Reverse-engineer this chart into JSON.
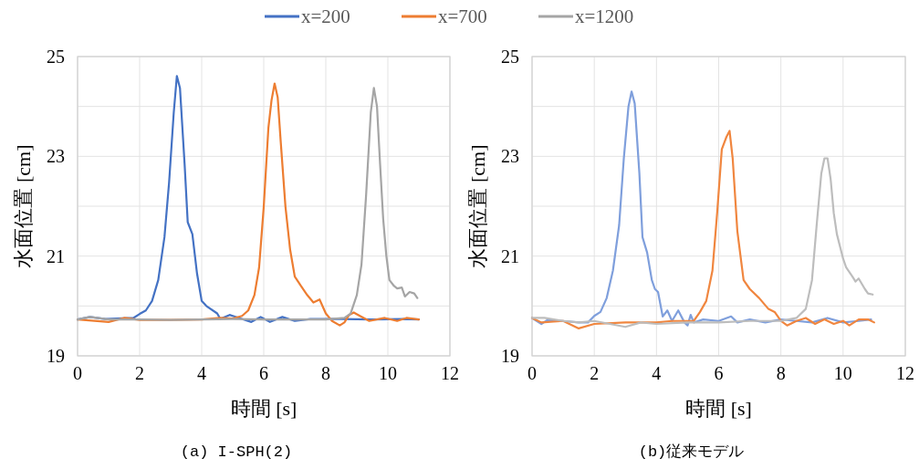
{
  "chart_data": [
    {
      "type": "line",
      "xlabel": "時間 [s]",
      "ylabel": "水面位置 [cm]",
      "annotations": [
        "(a) I-SPH(2)"
      ],
      "xlim": [
        0,
        12
      ],
      "xticks": [
        0,
        2,
        4,
        6,
        8,
        10,
        12
      ],
      "ylim": [
        19,
        25
      ],
      "yticks": [
        19,
        {
          "value": 20,
          "label": null
        },
        21,
        {
          "value": 22,
          "label": null
        },
        23,
        {
          "value": 24,
          "label": null
        },
        25
      ],
      "grid": true,
      "legend": "top",
      "marker": "none",
      "line_style": "solid",
      "series": [
        {
          "name": "x=200",
          "color": "#4472c4",
          "x": [
            0,
            0.4,
            0.9,
            1.8,
            2.0,
            2.2,
            2.4,
            2.6,
            2.8,
            2.95,
            3.1,
            3.2,
            3.3,
            3.45,
            3.55,
            3.7,
            3.85,
            4.0,
            4.15,
            4.5,
            4.6,
            4.9,
            5.2,
            5.6,
            5.9,
            6.2,
            6.6,
            7.0,
            7.5,
            8.5,
            9.5,
            10.5,
            11
          ],
          "values": [
            19.73,
            19.78,
            19.74,
            19.76,
            19.84,
            19.91,
            20.1,
            20.52,
            21.38,
            22.48,
            23.88,
            24.61,
            24.37,
            22.84,
            21.68,
            21.44,
            20.65,
            20.1,
            20.0,
            19.85,
            19.74,
            19.82,
            19.76,
            19.68,
            19.78,
            19.68,
            19.78,
            19.7,
            19.74,
            19.74,
            19.73,
            19.74,
            19.73
          ]
        },
        {
          "name": "x=700",
          "color": "#ed7d31",
          "x": [
            0,
            1.0,
            1.5,
            2,
            3,
            4,
            4.6,
            5.0,
            5.3,
            5.5,
            5.7,
            5.85,
            6.0,
            6.15,
            6.25,
            6.35,
            6.45,
            6.55,
            6.7,
            6.85,
            7.0,
            7.2,
            7.4,
            7.6,
            7.8,
            8.0,
            8.2,
            8.45,
            8.6,
            8.75,
            8.9,
            9.1,
            9.4,
            9.9,
            10.3,
            10.6,
            11
          ],
          "values": [
            19.73,
            19.68,
            19.76,
            19.72,
            19.72,
            19.73,
            19.76,
            19.75,
            19.8,
            19.91,
            20.22,
            20.77,
            21.99,
            23.57,
            24.12,
            24.46,
            24.18,
            23.27,
            21.99,
            21.13,
            20.59,
            20.4,
            20.22,
            20.07,
            20.13,
            19.85,
            19.7,
            19.61,
            19.67,
            19.82,
            19.87,
            19.8,
            19.7,
            19.76,
            19.7,
            19.76,
            19.73
          ]
        },
        {
          "name": "x=1200",
          "color": "#a5a5a5",
          "x": [
            0,
            0.4,
            1,
            2,
            3,
            4,
            5,
            6,
            7,
            8,
            8.6,
            8.8,
            9.0,
            9.15,
            9.3,
            9.45,
            9.55,
            9.65,
            9.75,
            9.85,
            9.95,
            10.05,
            10.2,
            10.3,
            10.45,
            10.55,
            10.7,
            10.85,
            10.95
          ],
          "values": [
            19.73,
            19.78,
            19.73,
            19.73,
            19.72,
            19.73,
            19.74,
            19.73,
            19.73,
            19.73,
            19.76,
            19.85,
            20.22,
            20.83,
            22.23,
            23.88,
            24.37,
            24.0,
            22.84,
            21.74,
            21.01,
            20.52,
            20.4,
            20.35,
            20.37,
            20.19,
            20.28,
            20.25,
            20.16
          ]
        }
      ]
    },
    {
      "type": "line",
      "xlabel": "時間 [s]",
      "ylabel": "水面位置 [cm]",
      "annotations": [
        "(b)従来モデル"
      ],
      "xlim": [
        0,
        12
      ],
      "xticks": [
        0,
        2,
        4,
        6,
        8,
        10,
        12
      ],
      "ylim": [
        19,
        25
      ],
      "yticks": [
        19,
        {
          "value": 20,
          "label": null
        },
        21,
        {
          "value": 22,
          "label": null
        },
        23,
        {
          "value": 24,
          "label": null
        },
        25
      ],
      "grid": true,
      "marker": "none",
      "line_style": "solid",
      "series": [
        {
          "color": "#7f9fdc",
          "x": [
            0,
            0.3,
            0.5,
            1.0,
            1.5,
            1.8,
            2.0,
            2.2,
            2.4,
            2.6,
            2.8,
            2.95,
            3.1,
            3.2,
            3.3,
            3.45,
            3.55,
            3.7,
            3.85,
            3.95,
            4.05,
            4.2,
            4.35,
            4.5,
            4.7,
            4.9,
            5.0,
            5.1,
            5.2,
            5.5,
            6,
            6.4,
            6.6,
            7.0,
            7.5,
            8,
            8.5,
            9,
            9.5,
            10,
            10.5,
            10.9
          ],
          "values": [
            19.76,
            19.64,
            19.72,
            19.7,
            19.67,
            19.67,
            19.8,
            19.88,
            20.16,
            20.71,
            21.62,
            22.96,
            24.0,
            24.3,
            24.06,
            22.66,
            21.38,
            21.07,
            20.52,
            20.34,
            20.28,
            19.79,
            19.91,
            19.7,
            19.91,
            19.67,
            19.61,
            19.82,
            19.67,
            19.73,
            19.7,
            19.79,
            19.67,
            19.73,
            19.67,
            19.73,
            19.7,
            19.67,
            19.76,
            19.67,
            19.7,
            19.73
          ]
        },
        {
          "color": "#f0863f",
          "x": [
            0,
            0.3,
            1.0,
            1.5,
            2,
            3,
            4,
            4.5,
            5.0,
            5.2,
            5.4,
            5.6,
            5.8,
            5.95,
            6.1,
            6.25,
            6.35,
            6.45,
            6.6,
            6.8,
            7.0,
            7.3,
            7.6,
            7.8,
            8.0,
            8.2,
            8.5,
            8.8,
            9.1,
            9.4,
            9.7,
            10.0,
            10.2,
            10.5,
            10.8,
            11
          ],
          "values": [
            19.76,
            19.67,
            19.7,
            19.55,
            19.64,
            19.67,
            19.67,
            19.7,
            19.7,
            19.7,
            19.88,
            20.1,
            20.71,
            21.86,
            23.14,
            23.39,
            23.51,
            22.96,
            21.5,
            20.52,
            20.34,
            20.16,
            19.94,
            19.88,
            19.7,
            19.61,
            19.7,
            19.76,
            19.64,
            19.73,
            19.64,
            19.7,
            19.61,
            19.73,
            19.73,
            19.67
          ]
        },
        {
          "color": "#bdbdbd",
          "x": [
            0,
            0.4,
            1.0,
            1.5,
            2,
            3,
            3.5,
            4,
            5,
            6,
            7,
            8,
            8.5,
            8.8,
            9.0,
            9.15,
            9.3,
            9.4,
            9.5,
            9.6,
            9.7,
            9.8,
            10.0,
            10.1,
            10.3,
            10.4,
            10.5,
            10.7,
            10.8,
            10.95
          ],
          "values": [
            19.76,
            19.76,
            19.7,
            19.67,
            19.7,
            19.58,
            19.67,
            19.64,
            19.67,
            19.67,
            19.7,
            19.7,
            19.76,
            19.94,
            20.52,
            21.62,
            22.66,
            22.96,
            22.96,
            22.54,
            21.86,
            21.44,
            20.95,
            20.77,
            20.59,
            20.49,
            20.55,
            20.34,
            20.25,
            20.23
          ]
        }
      ]
    }
  ]
}
